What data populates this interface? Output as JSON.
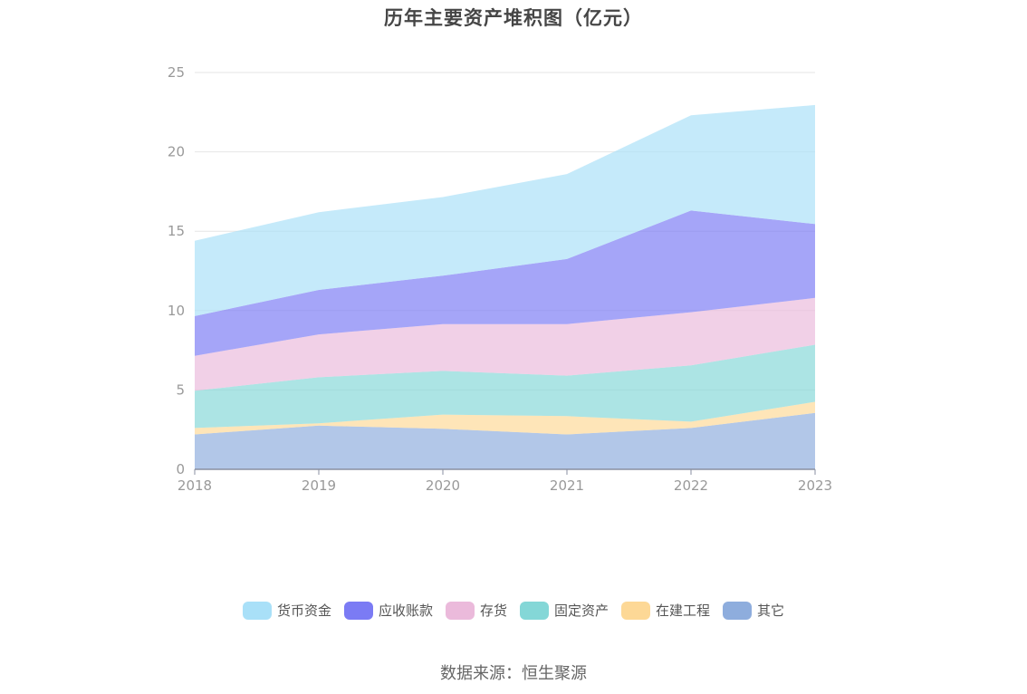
{
  "colors": {
    "货币资金": "#a9e0f8",
    "应收账款": "#7b7bf4",
    "存货": "#ebbadb",
    "固定资产": "#84d7d7",
    "在建工程": "#fdd896",
    "其它": "#8eaddd"
  },
  "source": "数据来源：恒生聚源",
  "chart_data": {
    "type": "area",
    "stacked": true,
    "title": "历年主要资产堆积图（亿元）",
    "x": [
      "2018",
      "2019",
      "2020",
      "2021",
      "2022",
      "2023"
    ],
    "ylim": [
      0,
      25
    ],
    "yticks": [
      0,
      5,
      10,
      15,
      20,
      25
    ],
    "grid": true,
    "legend_position": "bottom",
    "series": [
      {
        "name": "其它",
        "values": [
          2.2,
          2.75,
          2.55,
          2.2,
          2.6,
          3.55
        ]
      },
      {
        "name": "在建工程",
        "values": [
          0.4,
          0.15,
          0.9,
          1.15,
          0.4,
          0.7
        ]
      },
      {
        "name": "固定资产",
        "values": [
          2.35,
          2.9,
          2.75,
          2.55,
          3.55,
          3.6
        ]
      },
      {
        "name": "存货",
        "values": [
          2.2,
          2.7,
          2.95,
          3.25,
          3.35,
          2.95
        ]
      },
      {
        "name": "应收账款",
        "values": [
          2.5,
          2.8,
          3.05,
          4.1,
          6.4,
          4.65
        ]
      },
      {
        "name": "货币资金",
        "values": [
          4.75,
          4.9,
          4.95,
          5.35,
          6.0,
          7.5
        ]
      }
    ],
    "legend_order": [
      "货币资金",
      "应收账款",
      "存货",
      "固定资产",
      "在建工程",
      "其它"
    ]
  }
}
